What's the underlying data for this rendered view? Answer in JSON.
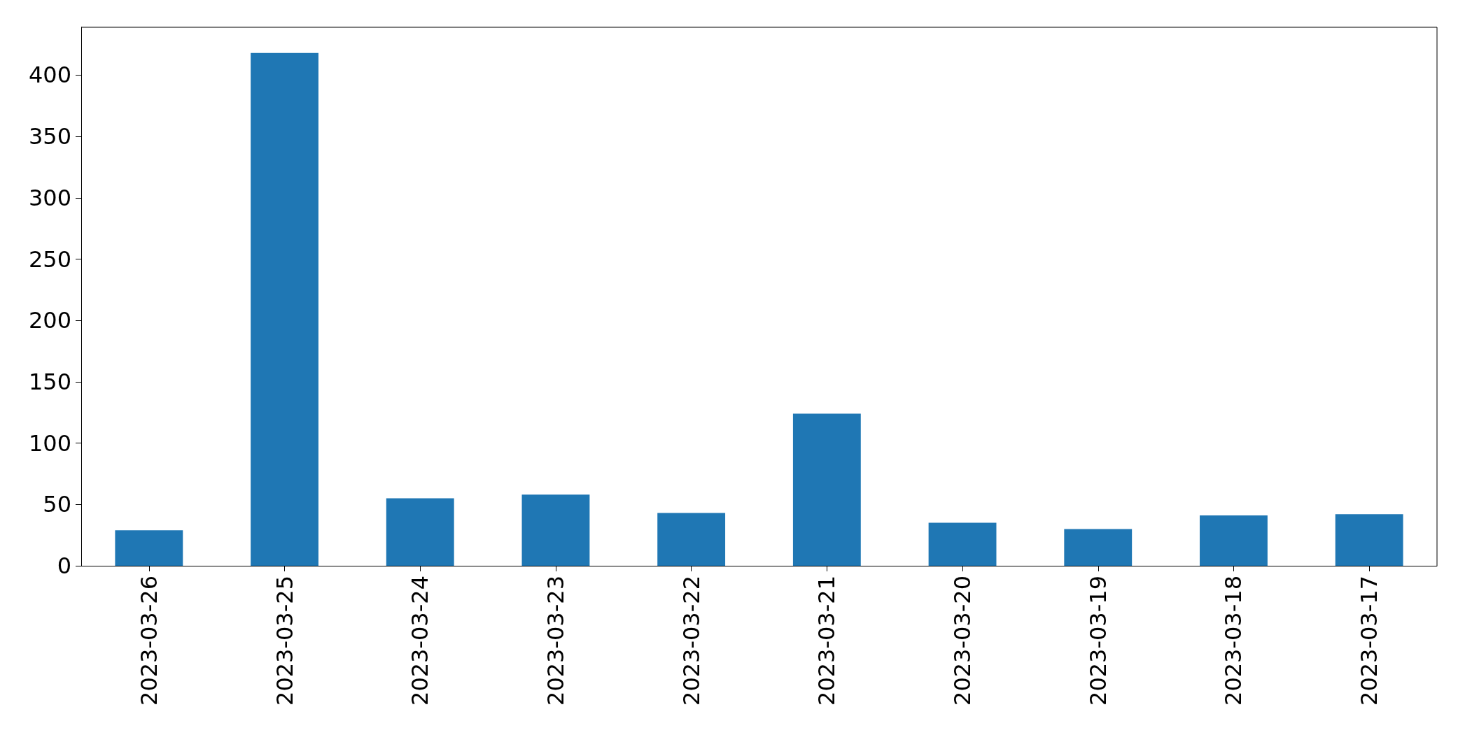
{
  "chart_data": {
    "type": "bar",
    "categories": [
      "2023-03-26",
      "2023-03-25",
      "2023-03-24",
      "2023-03-23",
      "2023-03-22",
      "2023-03-21",
      "2023-03-20",
      "2023-03-19",
      "2023-03-18",
      "2023-03-17"
    ],
    "values": [
      29,
      418,
      55,
      58,
      43,
      124,
      35,
      30,
      41,
      42
    ],
    "color": "#1f77b4",
    "ylim": [
      0,
      439
    ],
    "yticks": [
      0,
      50,
      100,
      150,
      200,
      250,
      300,
      350,
      400
    ],
    "grid": false
  }
}
